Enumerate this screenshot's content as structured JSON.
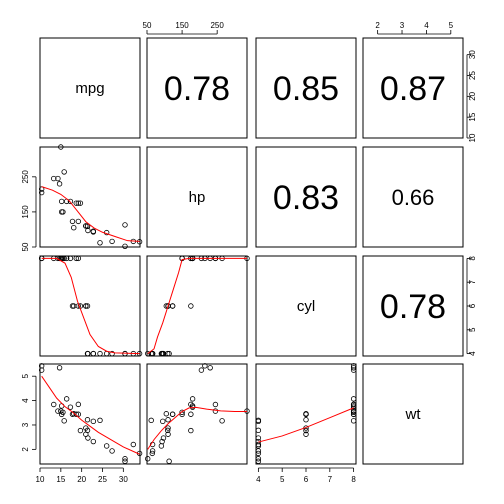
{
  "chart_data": {
    "type": "scatter",
    "variables": [
      "mpg",
      "hp",
      "cyl",
      "wt"
    ],
    "correlations": {
      "mpg_hp": "0.78",
      "mpg_cyl": "0.85",
      "mpg_wt": "0.87",
      "hp_cyl": "0.83",
      "hp_wt": "0.66",
      "cyl_wt": "0.78"
    },
    "correlation_values": {
      "mpg_hp": 0.78,
      "mpg_cyl": 0.85,
      "mpg_wt": 0.87,
      "hp_cyl": 0.83,
      "hp_wt": 0.66,
      "cyl_wt": 0.78
    },
    "axes": {
      "mpg": {
        "range": [
          10,
          34
        ],
        "ticks": [
          "10",
          "15",
          "20",
          "25",
          "30"
        ],
        "tick_values": [
          10,
          15,
          20,
          25,
          30
        ]
      },
      "hp": {
        "range": [
          50,
          335
        ],
        "ticks": [
          "50",
          "150",
          "250"
        ],
        "tick_values": [
          50,
          150,
          250
        ]
      },
      "cyl": {
        "range": [
          3.9,
          8.1
        ],
        "ticks": [
          "4",
          "5",
          "6",
          "7",
          "8"
        ],
        "tick_values": [
          4,
          5,
          6,
          7,
          8
        ]
      },
      "wt": {
        "range": [
          1.4,
          5.5
        ],
        "ticks": [
          "2",
          "3",
          "4",
          "5"
        ],
        "tick_values": [
          2,
          3,
          4,
          5
        ]
      }
    },
    "observations": {
      "mpg": [
        21,
        21,
        22.8,
        21.4,
        18.7,
        18.1,
        14.3,
        24.4,
        22.8,
        19.2,
        17.8,
        16.4,
        17.3,
        15.2,
        10.4,
        10.4,
        14.7,
        32.4,
        30.4,
        33.9,
        21.5,
        15.5,
        15.2,
        13.3,
        19.2,
        27.3,
        26,
        30.4,
        15.8,
        19.7,
        15,
        21.4
      ],
      "hp": [
        110,
        110,
        93,
        110,
        175,
        105,
        245,
        62,
        95,
        123,
        123,
        180,
        180,
        180,
        205,
        215,
        230,
        66,
        52,
        65,
        97,
        150,
        150,
        245,
        175,
        66,
        91,
        113,
        264,
        175,
        335,
        109
      ],
      "cyl": [
        6,
        6,
        4,
        6,
        8,
        6,
        8,
        4,
        4,
        6,
        6,
        8,
        8,
        8,
        8,
        8,
        8,
        4,
        4,
        4,
        4,
        8,
        8,
        8,
        8,
        4,
        4,
        4,
        8,
        6,
        8,
        4
      ],
      "wt": [
        2.62,
        2.875,
        2.32,
        3.215,
        3.44,
        3.46,
        3.57,
        3.19,
        3.15,
        3.44,
        3.44,
        4.07,
        3.73,
        3.78,
        5.25,
        5.424,
        5.345,
        2.2,
        1.615,
        1.835,
        2.465,
        3.52,
        3.435,
        3.84,
        3.845,
        1.935,
        2.14,
        1.513,
        3.17,
        2.77,
        3.57,
        2.78
      ]
    },
    "smooth_color": "#ff0000",
    "point_color": "#000000",
    "smooth_curves": {
      "hp_vs_mpg": [
        [
          10.4,
          222
        ],
        [
          13,
          212
        ],
        [
          15,
          200
        ],
        [
          17,
          182
        ],
        [
          19,
          152
        ],
        [
          21,
          122
        ],
        [
          23,
          104
        ],
        [
          25,
          92
        ],
        [
          28,
          80
        ],
        [
          31,
          68
        ],
        [
          33.9,
          66
        ]
      ],
      "cyl_vs_mpg": [
        [
          10.4,
          8
        ],
        [
          14,
          8
        ],
        [
          16,
          7.8
        ],
        [
          17.5,
          7.2
        ],
        [
          19,
          6.2
        ],
        [
          20.5,
          5.5
        ],
        [
          22,
          4.8
        ],
        [
          24,
          4.3
        ],
        [
          26,
          4.1
        ],
        [
          28,
          4.03
        ],
        [
          33.9,
          4
        ]
      ],
      "cyl_vs_hp": [
        [
          52,
          4
        ],
        [
          70,
          4.2
        ],
        [
          80,
          4.7
        ],
        [
          95,
          5.3
        ],
        [
          110,
          6
        ],
        [
          125,
          6.7
        ],
        [
          140,
          7.4
        ],
        [
          150,
          7.95
        ],
        [
          170,
          8
        ],
        [
          335,
          8
        ]
      ],
      "wt_vs_mpg": [
        [
          10.4,
          5.0
        ],
        [
          12,
          4.6
        ],
        [
          14,
          4.1
        ],
        [
          16,
          3.75
        ],
        [
          18,
          3.5
        ],
        [
          20,
          3.2
        ],
        [
          22,
          2.95
        ],
        [
          24,
          2.7
        ],
        [
          26,
          2.5
        ],
        [
          28,
          2.3
        ],
        [
          30,
          2.1
        ],
        [
          33.9,
          1.8
        ]
      ],
      "wt_vs_hp": [
        [
          52,
          2.0
        ],
        [
          70,
          2.4
        ],
        [
          90,
          2.75
        ],
        [
          110,
          3.05
        ],
        [
          130,
          3.3
        ],
        [
          150,
          3.55
        ],
        [
          170,
          3.7
        ],
        [
          190,
          3.72
        ],
        [
          220,
          3.65
        ],
        [
          260,
          3.58
        ],
        [
          300,
          3.55
        ],
        [
          335,
          3.55
        ]
      ],
      "wt_vs_cyl": [
        [
          4,
          2.3
        ],
        [
          5,
          2.55
        ],
        [
          6,
          2.9
        ],
        [
          7,
          3.3
        ],
        [
          8,
          3.7
        ]
      ]
    },
    "grid": false,
    "legend": "none"
  }
}
